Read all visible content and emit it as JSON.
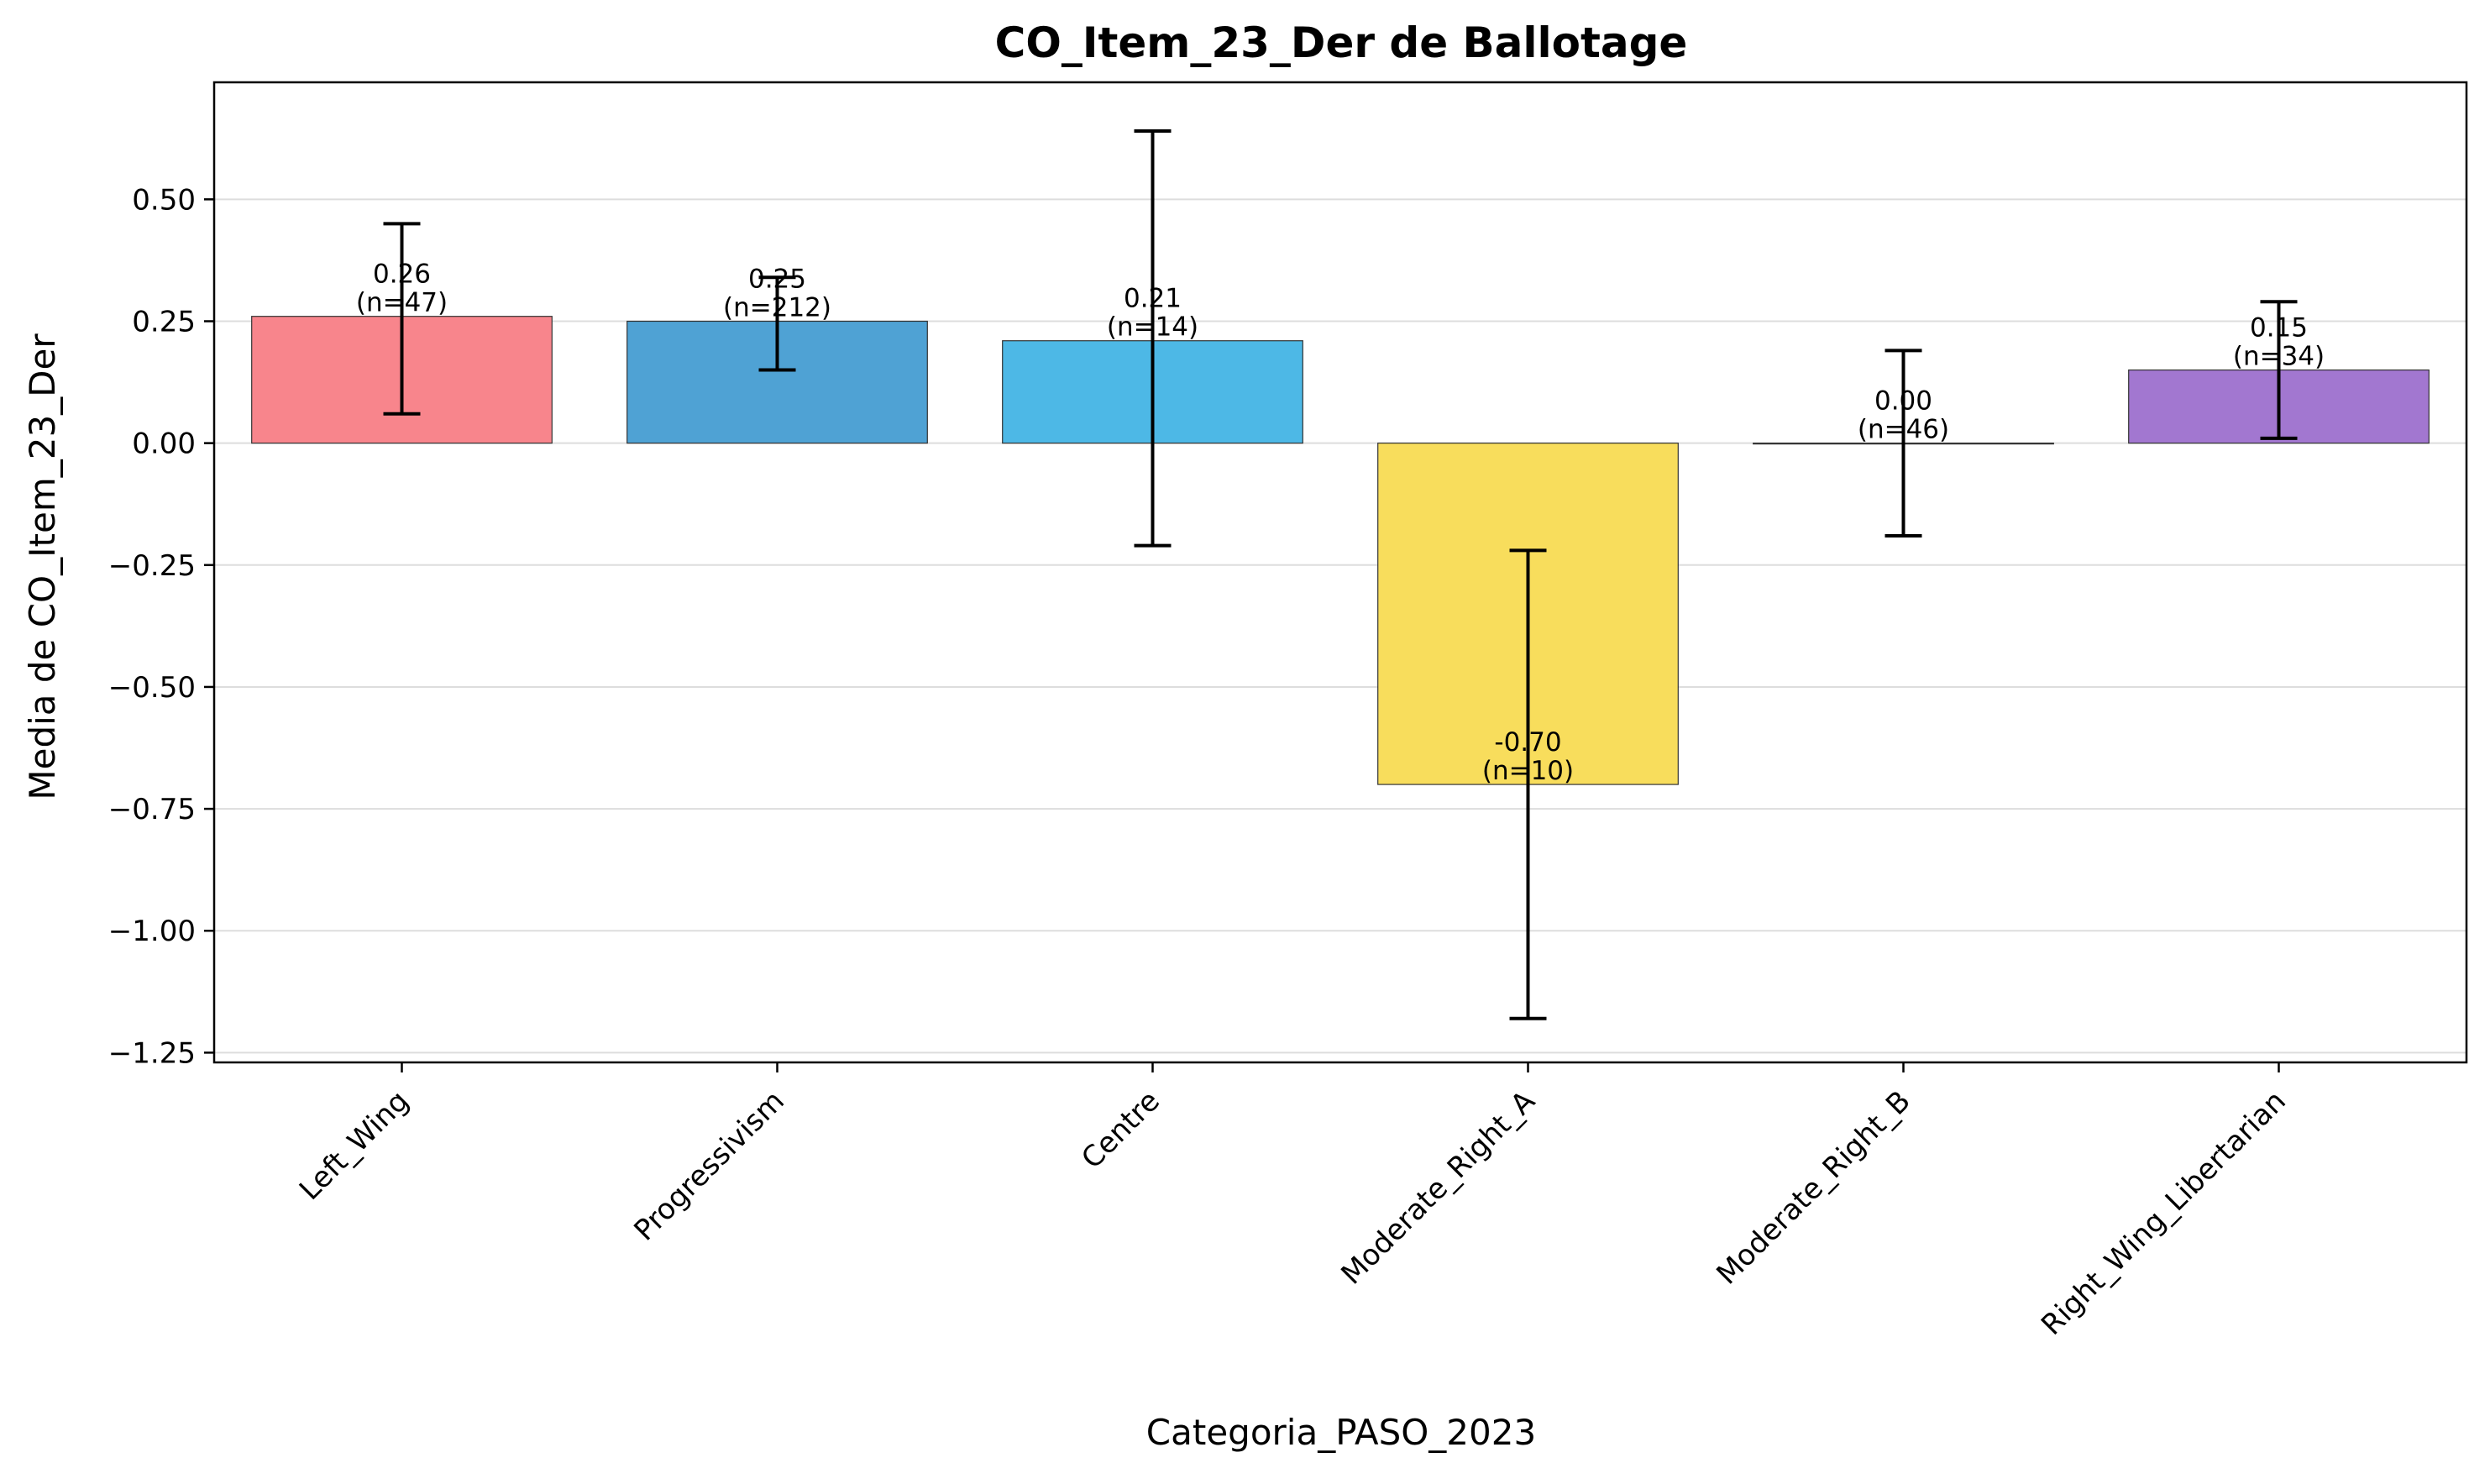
{
  "chart_data": {
    "type": "bar",
    "title": "CO_Item_23_Der de Ballotage",
    "xlabel": "Categoria_PASO_2023",
    "ylabel": "Media de CO_Item_23_Der",
    "categories": [
      "Left_Wing",
      "Progressivism",
      "Centre",
      "Moderate_Right_A",
      "Moderate_Right_B",
      "Right_Wing_Libertarian"
    ],
    "values": [
      0.26,
      0.25,
      0.21,
      -0.7,
      0.0,
      0.15
    ],
    "error_low": [
      0.06,
      0.15,
      -0.21,
      -1.18,
      -0.19,
      0.01
    ],
    "error_high": [
      0.45,
      0.34,
      0.64,
      -0.22,
      0.19,
      0.29
    ],
    "value_labels": [
      "0.26",
      "0.25",
      "0.21",
      "-0.70",
      "0.00",
      "0.15"
    ],
    "n_labels": [
      "(n=47)",
      "(n=212)",
      "(n=14)",
      "(n=10)",
      "(n=46)",
      "(n=34)"
    ],
    "colors": [
      "#f8858c",
      "#4fa2d4",
      "#4db8e6",
      "#f8dd5c",
      "#9eb3c8",
      "#a277d0"
    ],
    "ylim": [
      -1.27,
      0.74
    ],
    "yticks": [
      0.5,
      0.25,
      0.0,
      -0.25,
      -0.5,
      -0.75,
      -1.0,
      -1.25
    ],
    "ytick_labels": [
      "0.50",
      "0.25",
      "0.00",
      "−0.25",
      "−0.50",
      "−0.75",
      "−1.00",
      "−1.25"
    ],
    "grid": "horizontal",
    "legend": "none"
  }
}
